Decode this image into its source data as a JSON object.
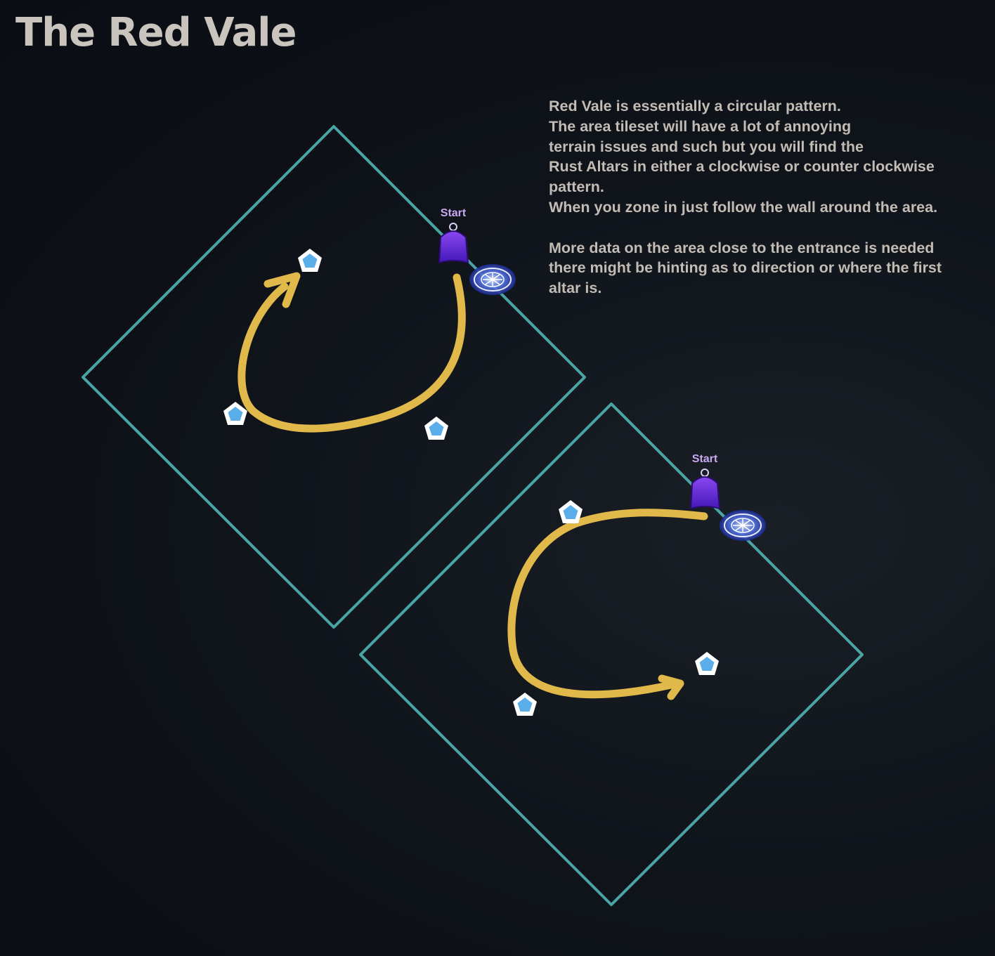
{
  "title": "The Red Vale",
  "notes": [
    "Red Vale is essentially a circular pattern.",
    "The area tileset will have a lot of annoying",
    "terrain issues and such but you will find the",
    "Rust Altars in either a clockwise or counter clockwise",
    "pattern.",
    "When you zone in just follow the wall around the area.",
    "",
    "More data on the area close to the entrance is needed",
    "there might be hinting as to direction or where the first",
    "altar is."
  ],
  "maps": [
    {
      "start_label": "Start",
      "direction": "counter-clockwise",
      "altars": 3,
      "icons": [
        "start-marker-icon",
        "waypoint-icon",
        "altar-icon"
      ]
    },
    {
      "start_label": "Start",
      "direction": "clockwise",
      "altars": 3,
      "icons": [
        "start-marker-icon",
        "waypoint-icon",
        "altar-icon"
      ]
    }
  ],
  "colors": {
    "background": "#0e1219",
    "boundary": "#4aa3a4",
    "path_arrow": "#e1b84a",
    "altar_fill": "#5aaeea",
    "altar_outline": "#ffffff",
    "start_label": "#c8a8f2",
    "start_marker": "#6a2fd4",
    "text": "#c2bcb5"
  }
}
